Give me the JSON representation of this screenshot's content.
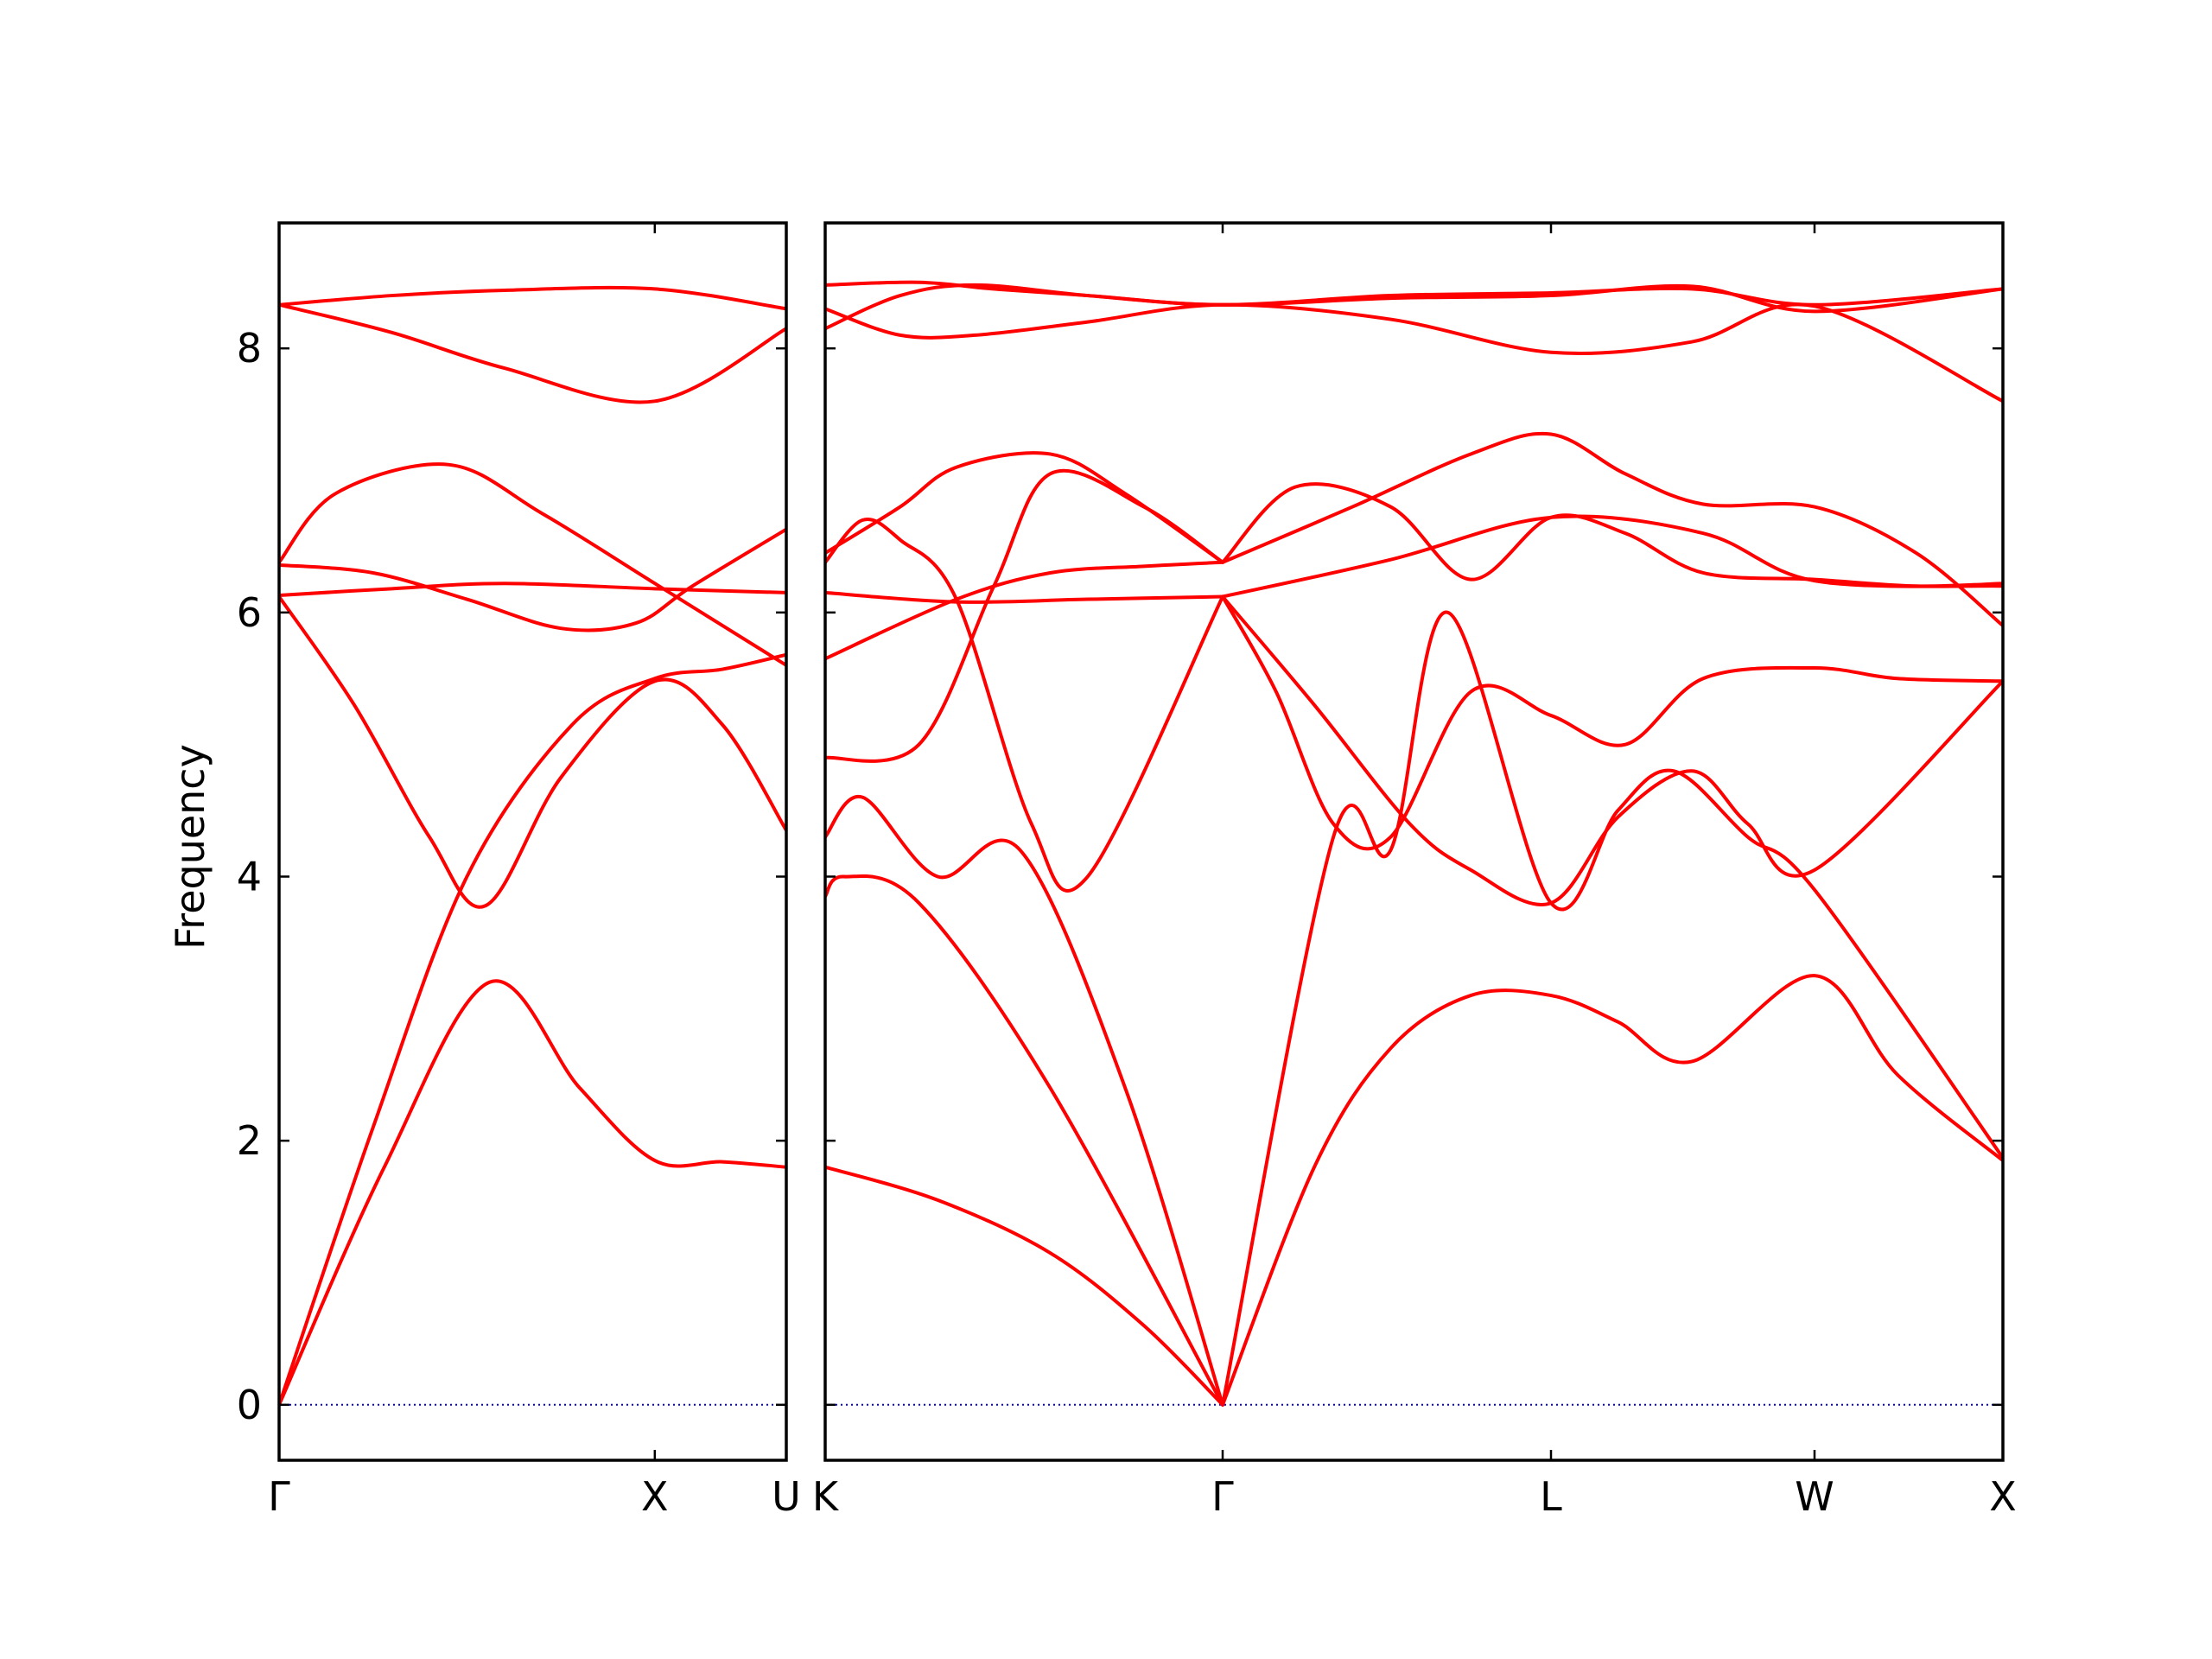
{
  "chart_data": {
    "type": "line",
    "ylabel": "Frequency",
    "ylim": [
      -0.42,
      8.95
    ],
    "yticks": [
      0,
      2,
      4,
      6,
      8
    ],
    "colors": {
      "band": "#ff0000",
      "zero_line": "#0000cc",
      "axes": "#000000"
    },
    "panels": [
      {
        "name": "left",
        "xlim": [
          0,
          1.35
        ],
        "xticks": [
          {
            "x": 0,
            "label": "Γ"
          },
          {
            "x": 1.0,
            "label": "X"
          },
          {
            "x": 1.35,
            "label": "U"
          }
        ],
        "series": [
          {
            "x": [
              0,
              0.28,
              0.56,
              0.8,
              1.0,
              1.18,
              1.35
            ],
            "values": [
              0,
              1.8,
              3.2,
              2.4,
              1.85,
              1.84,
              1.8
            ]
          },
          {
            "x": [
              0,
              0.25,
              0.5,
              0.78,
              1.0,
              1.18,
              1.35
            ],
            "values": [
              0,
              2.1,
              4.0,
              5.15,
              5.5,
              5.57,
              5.68
            ]
          },
          {
            "x": [
              0,
              0.2,
              0.4,
              0.55,
              0.75,
              1.0,
              1.18,
              1.35
            ],
            "values": [
              6.12,
              5.3,
              4.3,
              3.78,
              4.75,
              5.48,
              5.15,
              4.35
            ]
          },
          {
            "x": [
              0,
              0.3,
              0.6,
              1.0,
              1.35
            ],
            "values": [
              6.13,
              6.18,
              6.22,
              6.18,
              6.15
            ]
          },
          {
            "x": [
              0,
              0.25,
              0.5,
              0.75,
              0.95,
              1.1,
              1.35
            ],
            "values": [
              6.36,
              6.3,
              6.1,
              5.88,
              5.92,
              6.2,
              6.63
            ]
          },
          {
            "x": [
              0,
              0.15,
              0.45,
              0.7,
              1.0,
              1.35
            ],
            "values": [
              6.38,
              6.9,
              7.12,
              6.75,
              6.22,
              5.6
            ]
          },
          {
            "x": [
              0,
              0.3,
              0.6,
              1.0,
              1.35
            ],
            "values": [
              8.33,
              8.12,
              7.85,
              7.6,
              8.15
            ]
          },
          {
            "x": [
              0,
              0.3,
              0.6,
              1.0,
              1.35
            ],
            "values": [
              8.33,
              8.4,
              8.44,
              8.45,
              8.3
            ]
          }
        ]
      },
      {
        "name": "right",
        "xlim": [
          0,
          3.8
        ],
        "xticks": [
          {
            "x": 0,
            "label": "K"
          },
          {
            "x": 1.06,
            "label": "Γ"
          },
          {
            "x": 1.92,
            "label": "L"
          },
          {
            "x": 2.63,
            "label": "W"
          },
          {
            "x": 3.13,
            "label": "X"
          }
        ],
        "xticks_scaled": true,
        "series": [
          {
            "x": [
              0,
              0.3,
              0.6,
              0.85,
              1.06
            ],
            "values": [
              1.8,
              1.55,
              1.15,
              0.6,
              0
            ]
          },
          {
            "x": [
              0,
              0.05,
              0.25,
              0.6,
              1.06
            ],
            "values": [
              3.85,
              4.0,
              3.8,
              2.4,
              0
            ]
          },
          {
            "x": [
              0,
              0.1,
              0.3,
              0.52,
              0.8,
              1.06
            ],
            "values": [
              4.3,
              4.6,
              4.0,
              4.2,
              2.4,
              0
            ]
          },
          {
            "x": [
              1.06,
              1.3,
              1.5,
              1.71,
              1.92,
              2.1,
              2.3,
              2.63,
              2.85,
              3.13
            ],
            "values": [
              0,
              1.8,
              2.7,
              3.1,
              3.1,
              2.9,
              2.6,
              3.25,
              2.5,
              1.85
            ]
          },
          {
            "x": [
              1.06,
              1.35,
              1.5,
              1.65,
              1.92,
              2.1,
              2.25,
              2.45,
              2.63,
              3.13
            ],
            "values": [
              0,
              4.3,
              4.2,
              6.0,
              3.8,
              4.5,
              4.8,
              4.3,
              3.9,
              1.87
            ]
          },
          {
            "x": [
              1.06,
              1.3,
              1.55,
              1.71,
              1.92,
              2.1,
              2.3,
              2.45,
              2.63,
              3.13
            ],
            "values": [
              6.12,
              5.3,
              4.4,
              4.05,
              3.8,
              4.45,
              4.8,
              4.4,
              4.05,
              5.48
            ]
          },
          {
            "x": [
              1.06,
              1.2,
              1.35,
              1.5,
              1.71,
              1.92,
              2.12,
              2.33,
              2.63,
              2.85,
              3.13
            ],
            "values": [
              6.12,
              5.4,
              4.4,
              4.3,
              5.4,
              5.22,
              5.0,
              5.5,
              5.58,
              5.5,
              5.48
            ]
          },
          {
            "x": [
              1.06,
              1.25,
              1.5,
              1.71,
              1.92,
              2.12,
              2.33,
              2.63,
              2.9,
              3.13
            ],
            "values": [
              6.38,
              6.95,
              6.8,
              6.25,
              6.72,
              6.6,
              6.3,
              6.25,
              6.2,
              6.22
            ]
          },
          {
            "x": [
              1.06,
              1.4,
              1.71,
              1.92,
              2.12,
              2.33,
              2.63,
              2.9,
              3.13
            ],
            "values": [
              6.38,
              6.8,
              7.2,
              7.35,
              7.05,
              6.82,
              6.8,
              6.45,
              5.9
            ]
          },
          {
            "x": [
              0,
              0.35,
              0.6,
              0.85,
              1.06
            ],
            "values": [
              5.65,
              6.1,
              6.3,
              6.35,
              6.38
            ]
          },
          {
            "x": [
              0,
              0.35,
              0.7,
              1.06
            ],
            "values": [
              6.15,
              6.08,
              6.1,
              6.12
            ]
          },
          {
            "x": [
              0,
              0.1,
              0.2,
              0.35,
              0.55,
              0.7,
              1.06
            ],
            "values": [
              6.38,
              6.7,
              6.55,
              6.1,
              4.4,
              4.0,
              6.12
            ]
          },
          {
            "x": [
              0,
              0.25,
              0.45,
              0.6,
              0.85,
              1.06
            ],
            "values": [
              4.9,
              5.0,
              6.2,
              7.05,
              6.8,
              6.38
            ]
          },
          {
            "x": [
              0,
              0.2,
              0.35,
              0.6,
              0.8,
              1.06
            ],
            "values": [
              6.45,
              6.8,
              7.1,
              7.2,
              6.9,
              6.38
            ]
          },
          {
            "x": [
              0,
              0.25,
              0.45,
              0.7,
              1.06,
              1.5,
              1.92,
              2.3,
              2.63,
              3.13
            ],
            "values": [
              8.48,
              8.5,
              8.45,
              8.4,
              8.33,
              8.4,
              8.42,
              8.45,
              8.33,
              8.45
            ]
          },
          {
            "x": [
              0,
              0.2,
              0.4,
              0.7,
              1.06,
              1.5,
              1.92,
              2.3,
              2.63,
              3.13
            ],
            "values": [
              8.3,
              8.1,
              8.1,
              8.2,
              8.33,
              8.22,
              7.97,
              8.05,
              8.32,
              7.6
            ]
          },
          {
            "x": [
              0,
              0.2,
              0.4,
              0.7,
              1.06,
              1.5,
              1.92,
              2.3,
              2.63,
              3.13
            ],
            "values": [
              8.15,
              8.4,
              8.48,
              8.4,
              8.33,
              8.38,
              8.4,
              8.47,
              8.28,
              8.45
            ]
          },
          {
            "x": [
              1.06,
              1.5,
              1.92,
              2.33,
              2.63,
              3.13
            ],
            "values": [
              6.12,
              6.4,
              6.72,
              6.6,
              6.24,
              6.2
            ]
          }
        ]
      }
    ]
  }
}
